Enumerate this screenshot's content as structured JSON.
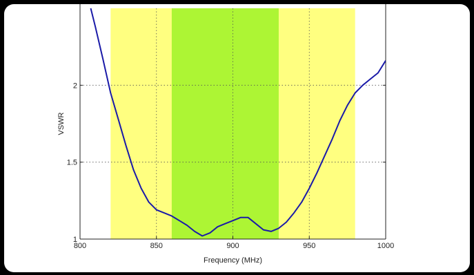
{
  "chart_data": {
    "type": "line",
    "title": "",
    "xlabel": "Frequency (MHz)",
    "ylabel": "VSWR",
    "xlim": [
      800,
      1000
    ],
    "ylim": [
      1,
      2.5
    ],
    "grid": true,
    "x_ticks": [
      800,
      850,
      900,
      950,
      1000
    ],
    "y_ticks": [
      1,
      1.5,
      2
    ],
    "bands": [
      {
        "from": 820,
        "to": 980,
        "color": "#ffff80"
      },
      {
        "from": 860,
        "to": 930,
        "color": "#adf534"
      }
    ],
    "series": [
      {
        "color": "#1a1aa8",
        "x": [
          807,
          810,
          815,
          820,
          825,
          830,
          835,
          840,
          845,
          850,
          855,
          860,
          865,
          870,
          875,
          880,
          885,
          890,
          895,
          900,
          905,
          910,
          915,
          920,
          925,
          930,
          935,
          940,
          945,
          950,
          955,
          960,
          965,
          970,
          975,
          980,
          985,
          990,
          995,
          1000
        ],
        "y": [
          2.5,
          2.38,
          2.17,
          1.95,
          1.78,
          1.61,
          1.45,
          1.33,
          1.24,
          1.19,
          1.17,
          1.15,
          1.12,
          1.09,
          1.05,
          1.02,
          1.04,
          1.08,
          1.1,
          1.12,
          1.14,
          1.14,
          1.1,
          1.06,
          1.05,
          1.07,
          1.11,
          1.17,
          1.24,
          1.33,
          1.43,
          1.54,
          1.65,
          1.77,
          1.87,
          1.95,
          2.0,
          2.04,
          2.08,
          2.16
        ]
      }
    ]
  }
}
